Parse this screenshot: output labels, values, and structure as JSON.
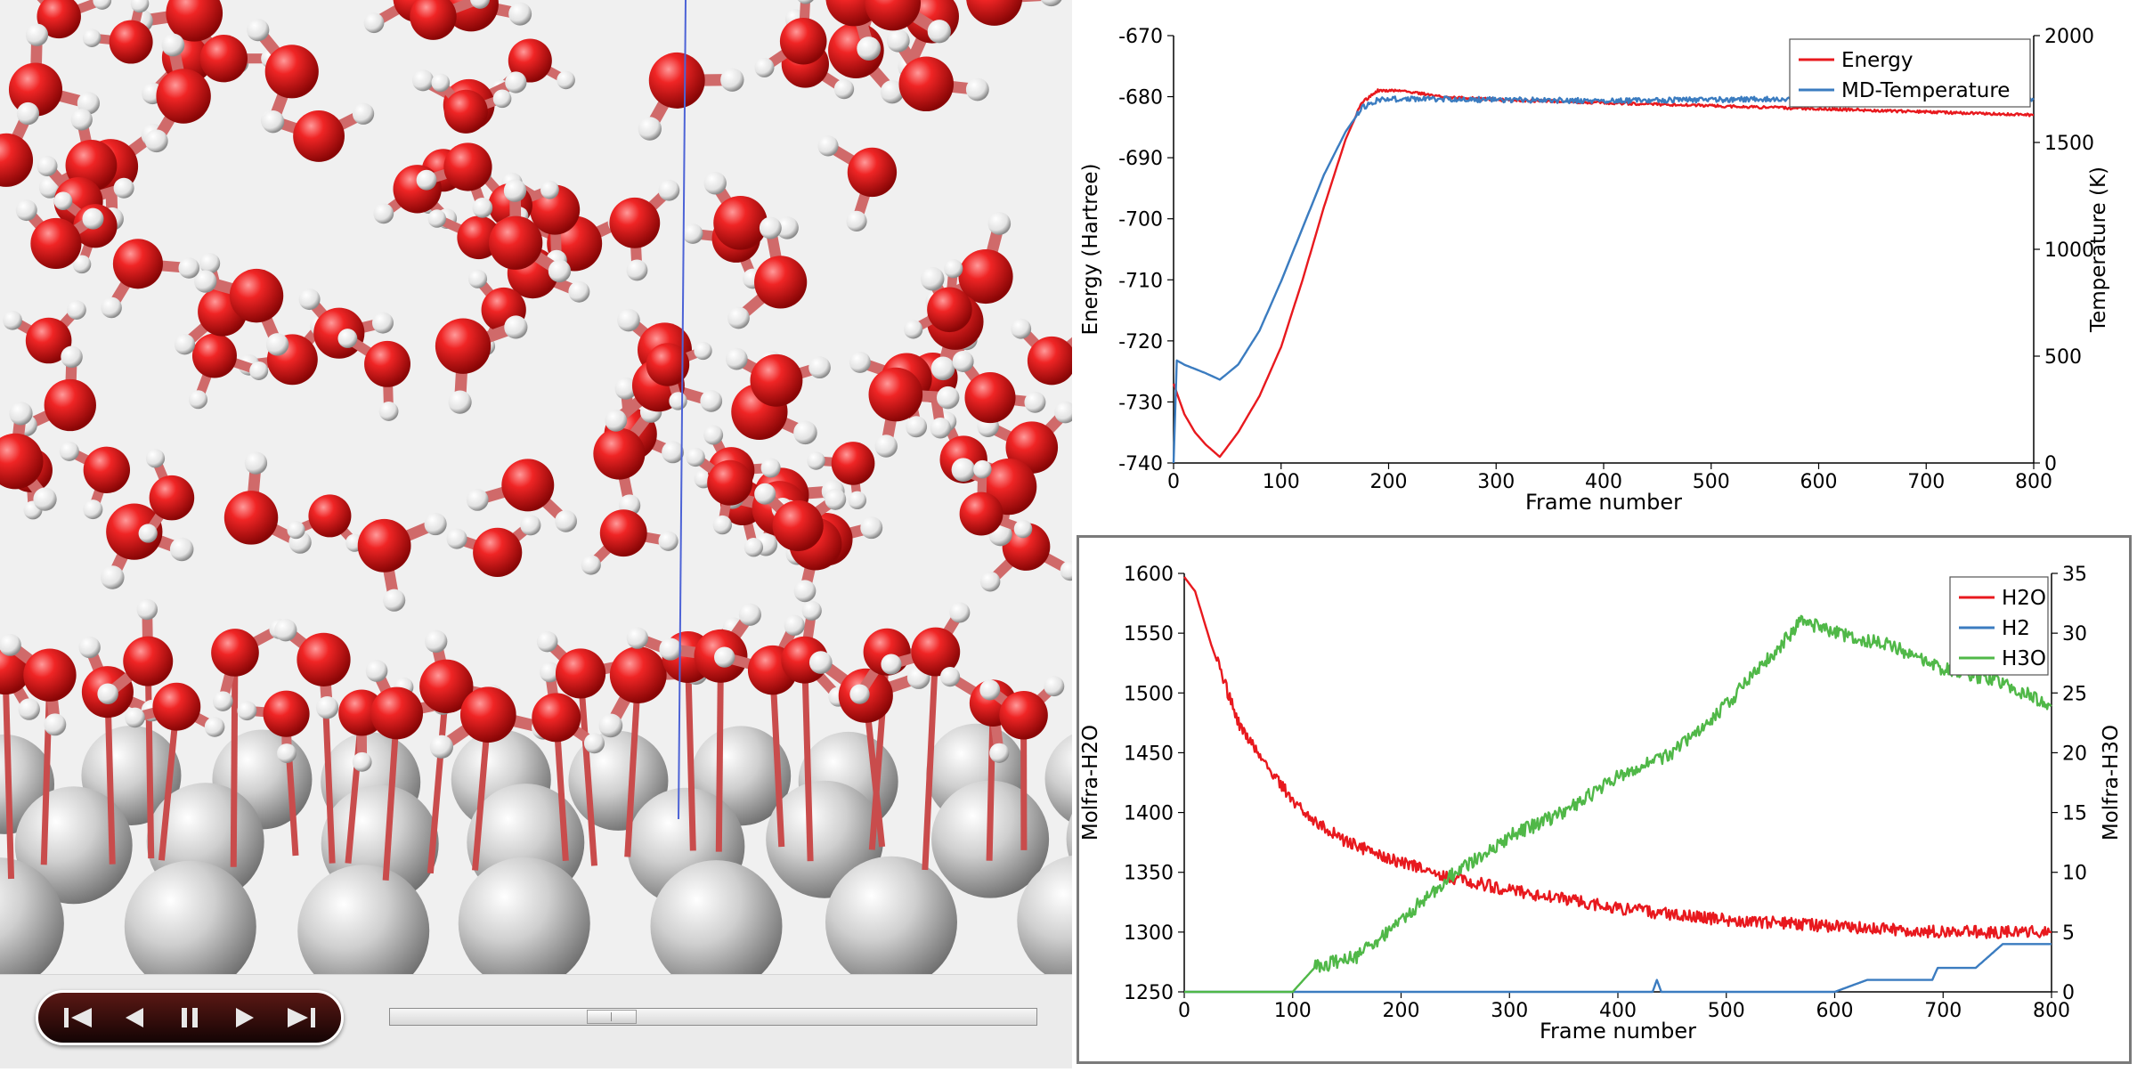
{
  "viewer": {
    "name": "molecular-dynamics-viewer",
    "atom_colors": {
      "oxygen": "#e01a1a",
      "hydrogen": "#ffffff",
      "metal": "#c4c4c4",
      "bond": "#d06a6a"
    },
    "controls": {
      "buttons": [
        {
          "name": "skip-to-start-button",
          "icon": "skip-start-icon"
        },
        {
          "name": "step-back-button",
          "icon": "step-back-icon"
        },
        {
          "name": "pause-button",
          "icon": "pause-icon"
        },
        {
          "name": "step-forward-button",
          "icon": "step-forward-icon"
        },
        {
          "name": "skip-to-end-button",
          "icon": "skip-end-icon"
        }
      ],
      "timeline_position": 0.33
    }
  },
  "chart_data": [
    {
      "type": "line",
      "xlabel": "Frame number",
      "ylabel": "Energy (Hartree)",
      "y2label": "Temperature (K)",
      "xlim": [
        0,
        800
      ],
      "ylim": [
        -740,
        -670
      ],
      "y2lim": [
        0,
        2000
      ],
      "x_ticks": [
        "0",
        "100",
        "200",
        "300",
        "400",
        "500",
        "600",
        "700",
        "800"
      ],
      "y_ticks": [
        "-740",
        "-730",
        "-720",
        "-710",
        "-700",
        "-690",
        "-680",
        "-670"
      ],
      "y2_ticks": [
        "0",
        "500",
        "1000",
        "1500",
        "2000"
      ],
      "legend_position": "top-right",
      "series": [
        {
          "name": "Energy",
          "axis": "left",
          "color": "#e8191e",
          "x": [
            0,
            10,
            20,
            30,
            43,
            60,
            80,
            100,
            120,
            140,
            160,
            175,
            190,
            210,
            250,
            300,
            400,
            500,
            600,
            700,
            800
          ],
          "values": [
            -727,
            -732,
            -735,
            -737,
            -739,
            -735,
            -729,
            -721,
            -710,
            -698,
            -687,
            -681,
            -679,
            -679,
            -680,
            -680.5,
            -681,
            -681.5,
            -682,
            -682.5,
            -683
          ]
        },
        {
          "name": "MD-Temperature",
          "axis": "right",
          "color": "#3b7cc0",
          "x": [
            0,
            3,
            10,
            20,
            30,
            43,
            60,
            80,
            100,
            120,
            140,
            160,
            175,
            190,
            220,
            300,
            400,
            500,
            600,
            700,
            800
          ],
          "values": [
            0,
            480,
            460,
            440,
            420,
            390,
            460,
            620,
            850,
            1100,
            1350,
            1550,
            1660,
            1700,
            1705,
            1700,
            1695,
            1700,
            1705,
            1700,
            1700
          ]
        }
      ]
    },
    {
      "type": "line",
      "xlabel": "Frame number",
      "ylabel": "Molfra-H2O",
      "y2label": "Molfra-H3O",
      "xlim": [
        0,
        800
      ],
      "ylim": [
        1250,
        1600
      ],
      "y2lim": [
        0,
        35
      ],
      "x_ticks": [
        "0",
        "100",
        "200",
        "300",
        "400",
        "500",
        "600",
        "700",
        "800"
      ],
      "y_ticks": [
        "1250",
        "1300",
        "1350",
        "1400",
        "1450",
        "1500",
        "1550",
        "1600"
      ],
      "y2_ticks": [
        "0",
        "5",
        "10",
        "15",
        "20",
        "25",
        "30",
        "35"
      ],
      "legend_position": "top-right",
      "series": [
        {
          "name": "H2O",
          "axis": "left",
          "color": "#e8191e",
          "x": [
            0,
            10,
            25,
            50,
            75,
            100,
            125,
            150,
            200,
            250,
            300,
            400,
            500,
            600,
            700,
            800
          ],
          "values": [
            1597,
            1585,
            1540,
            1475,
            1440,
            1410,
            1390,
            1375,
            1358,
            1345,
            1335,
            1320,
            1310,
            1305,
            1300,
            1300
          ]
        },
        {
          "name": "H2",
          "axis": "right",
          "color": "#3b7cc0",
          "x": [
            0,
            432,
            436,
            440,
            600,
            630,
            690,
            695,
            730,
            755,
            800
          ],
          "values": [
            0,
            0,
            1,
            0,
            0,
            1,
            1,
            2,
            2,
            4,
            4
          ]
        },
        {
          "name": "H3O",
          "axis": "right",
          "color": "#50b848",
          "x": [
            0,
            100,
            120,
            160,
            200,
            250,
            300,
            350,
            400,
            450,
            500,
            550,
            570,
            600,
            650,
            700,
            750,
            800
          ],
          "values": [
            0,
            0,
            2,
            3,
            6,
            10,
            13,
            15,
            18,
            20,
            24,
            29,
            31,
            30,
            29,
            27,
            26,
            24
          ]
        }
      ]
    }
  ]
}
